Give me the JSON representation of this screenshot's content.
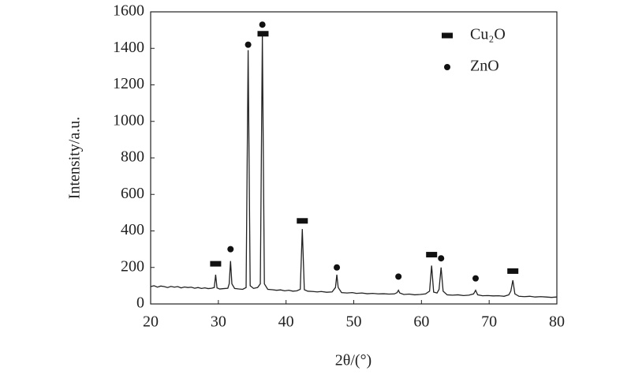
{
  "chart_data": {
    "type": "line",
    "xlabel": "2θ/(°)",
    "ylabel": "Intensity/a.u.",
    "xlim": [
      20,
      80
    ],
    "xticks": [
      20,
      30,
      40,
      50,
      60,
      70,
      80
    ],
    "ylim": [
      0,
      1600
    ],
    "yticks": [
      0,
      200,
      400,
      600,
      800,
      1000,
      1200,
      1400,
      1600
    ],
    "legend": "upper right",
    "series": [
      {
        "color": "#222222",
        "x": [
          20,
          20.5,
          21,
          21.5,
          22,
          22.5,
          23,
          23.5,
          24,
          24.5,
          25,
          25.5,
          26,
          26.5,
          27,
          27.5,
          28,
          28.5,
          29,
          29.4,
          29.6,
          29.8,
          30.2,
          30.8,
          31.4,
          31.6,
          31.8,
          32.0,
          32.4,
          33,
          33.6,
          34.1,
          34.4,
          34.7,
          35.2,
          35.8,
          36.2,
          36.5,
          36.8,
          37.3,
          38,
          38.6,
          39.2,
          39.8,
          40.4,
          41,
          41.6,
          42.1,
          42.4,
          42.7,
          43.2,
          44,
          44.6,
          45.2,
          46,
          46.8,
          47.3,
          47.5,
          47.7,
          48.2,
          49,
          49.8,
          50.4,
          51.2,
          52,
          52.8,
          53.6,
          54.4,
          55.2,
          56,
          56.4,
          56.6,
          56.8,
          57.4,
          58.2,
          59,
          59.8,
          60.6,
          61.2,
          61.5,
          61.8,
          62.3,
          62.6,
          62.9,
          63.2,
          63.8,
          64.6,
          65.4,
          66.2,
          67,
          67.7,
          68,
          68.3,
          69,
          69.8,
          70.6,
          71.4,
          72.2,
          72.9,
          73.2,
          73.5,
          73.8,
          74.4,
          75.2,
          76,
          76.8,
          77.6,
          78.4,
          79.2,
          80
        ],
        "values": [
          95,
          100,
          92,
          98,
          95,
          90,
          96,
          92,
          95,
          88,
          93,
          90,
          92,
          86,
          90,
          85,
          88,
          84,
          86,
          90,
          160,
          88,
          82,
          84,
          86,
          110,
          235,
          110,
          85,
          82,
          80,
          90,
          1390,
          100,
          85,
          90,
          110,
          1470,
          110,
          80,
          78,
          75,
          77,
          72,
          75,
          70,
          72,
          80,
          410,
          78,
          70,
          68,
          66,
          68,
          64,
          66,
          90,
          160,
          90,
          62,
          60,
          62,
          58,
          60,
          56,
          58,
          55,
          56,
          54,
          55,
          62,
          75,
          60,
          52,
          54,
          50,
          52,
          55,
          70,
          210,
          65,
          60,
          80,
          200,
          70,
          50,
          48,
          50,
          46,
          48,
          55,
          75,
          50,
          45,
          46,
          44,
          45,
          42,
          50,
          70,
          130,
          55,
          42,
          40,
          42,
          38,
          40,
          38,
          36,
          38
        ]
      },
      {
        "name": "Cu₂O",
        "type": "scatter",
        "marker": "rect",
        "color": "#111111",
        "x": [
          29.6,
          36.6,
          42.4,
          61.5,
          73.5
        ],
        "values": [
          220,
          1480,
          455,
          270,
          180
        ]
      },
      {
        "name": "ZnO",
        "type": "scatter",
        "marker": "circle",
        "color": "#111111",
        "x": [
          31.8,
          34.4,
          36.5,
          47.5,
          56.6,
          62.9,
          68.0
        ],
        "values": [
          300,
          1420,
          1530,
          200,
          150,
          250,
          140
        ]
      }
    ]
  }
}
